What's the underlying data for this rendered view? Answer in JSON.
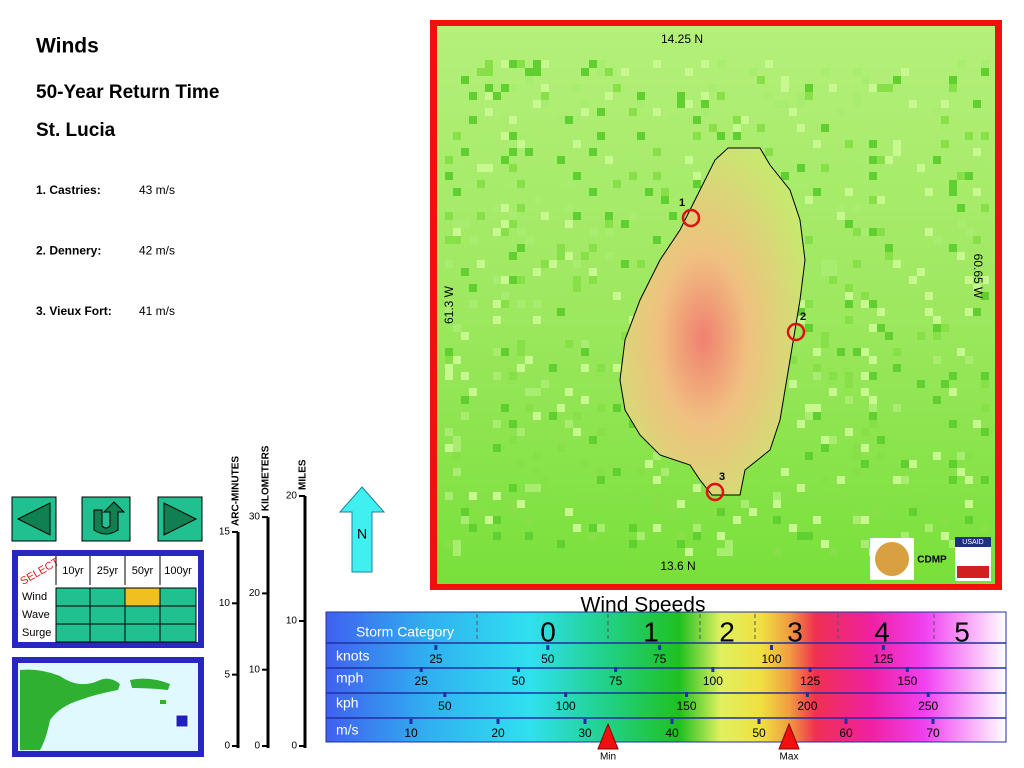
{
  "header": {
    "title": "Winds",
    "subtitle": "50-Year Return Time",
    "location": "St. Lucia"
  },
  "sites": [
    {
      "label": "1. Castries:",
      "value": "43 m/s"
    },
    {
      "label": "2. Dennery:",
      "value": "42 m/s"
    },
    {
      "label": "3. Vieux Fort:",
      "value": "41 m/s"
    }
  ],
  "map": {
    "top": "14.25 N",
    "bottom": "13.6 N",
    "left": "61.3 W",
    "right": "60.65 W",
    "markers": [
      "1",
      "2",
      "3"
    ],
    "logo": "CDMP",
    "usaid": "USAID"
  },
  "scales": [
    {
      "name": "ARC-MINUTES",
      "ticks": [
        0,
        5,
        10,
        15
      ]
    },
    {
      "name": "KILOMETERS",
      "ticks": [
        0,
        10,
        20,
        30
      ]
    },
    {
      "name": "MILES",
      "ticks": [
        0,
        10,
        20
      ]
    }
  ],
  "north": "N",
  "selector": {
    "label": "SELECT",
    "columns": [
      "10yr",
      "25yr",
      "50yr",
      "100yr"
    ],
    "rows": [
      "Wind",
      "Wave",
      "Surge"
    ]
  },
  "legend": {
    "title": "Wind Speeds",
    "category_label": "Storm Category",
    "categories": [
      "0",
      "1",
      "2",
      "3",
      "4",
      "5"
    ],
    "units": [
      {
        "name": "knots",
        "ticks": [
          25,
          50,
          75,
          100,
          125
        ]
      },
      {
        "name": "mph",
        "ticks": [
          25,
          50,
          75,
          100,
          125,
          150
        ]
      },
      {
        "name": "kph",
        "ticks": [
          50,
          100,
          150,
          200,
          250
        ]
      },
      {
        "name": "m/s",
        "ticks": [
          10,
          20,
          30,
          40,
          50,
          60,
          70
        ]
      }
    ],
    "min": "Min",
    "max": "Max"
  }
}
